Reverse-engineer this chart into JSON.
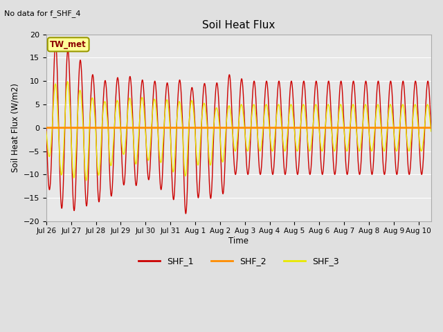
{
  "title": "Soil Heat Flux",
  "subtitle": "No data for f_SHF_4",
  "xlabel": "Time",
  "ylabel": "Soil Heat Flux (W/m2)",
  "ylim": [
    -20,
    20
  ],
  "yticks": [
    -20,
    -15,
    -10,
    -5,
    0,
    5,
    10,
    15,
    20
  ],
  "fig_facecolor": "#e0e0e0",
  "plot_bg_color": "#e8e8e8",
  "shf1_color": "#cc0000",
  "shf2_color": "#ff8c00",
  "shf3_color": "#e8e800",
  "annotation_text": "TW_met",
  "annotation_box_color": "#ffff99",
  "annotation_border_color": "#999900",
  "legend_labels": [
    "SHF_1",
    "SHF_2",
    "SHF_3"
  ],
  "xtick_labels": [
    "Jul 26",
    "Jul 27",
    "Jul 28",
    "Jul 29",
    "Jul 30",
    "Jul 31",
    "Aug 1",
    "Aug 2",
    "Aug 3",
    "Aug 4",
    "Aug 5",
    "Aug 6",
    "Aug 7",
    "Aug 8",
    "Aug 9",
    "Aug 10"
  ],
  "xlim": [
    0,
    15.5
  ],
  "period_days": 0.5,
  "shf1_amps": [
    16,
    19,
    16,
    14,
    10.5,
    10,
    11,
    11,
    10,
    10,
    9.5,
    10.5,
    8,
    10,
    9.5,
    12,
    10
  ],
  "shf3_amps": [
    5,
    11,
    9.5,
    7.5,
    6,
    5.5,
    6,
    6.5,
    6.5,
    6,
    6,
    5.5,
    6,
    5,
    4,
    5,
    5
  ],
  "shf1_neg_amps": [
    12,
    17,
    18,
    17,
    16,
    15.5,
    12,
    13,
    10.5,
    13,
    14,
    19.5,
    15,
    15,
    15.5,
    10
  ],
  "shf3_neg_amps": [
    5,
    10,
    10.5,
    11.5,
    10.5,
    9,
    5,
    8,
    7,
    7,
    9,
    11,
    8,
    8,
    8,
    5
  ]
}
